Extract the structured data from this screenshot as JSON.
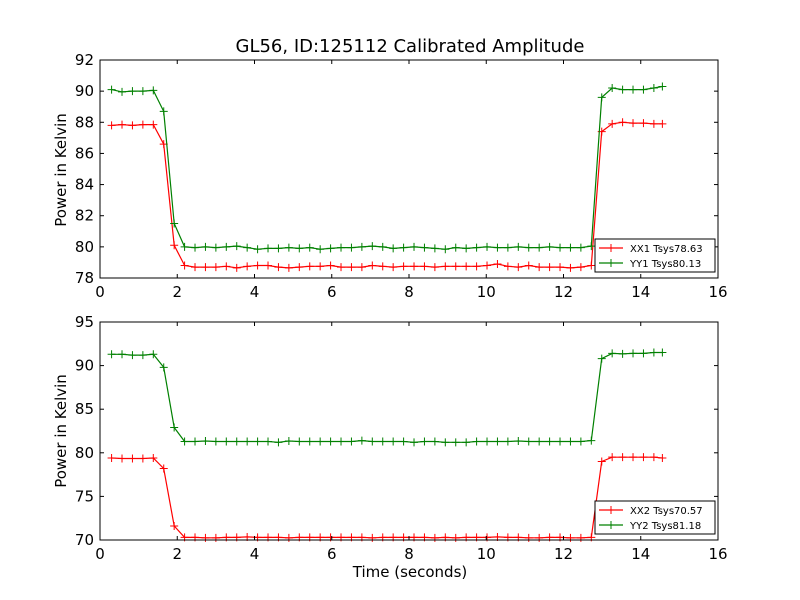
{
  "chart_data": [
    {
      "type": "line",
      "title": "GL56, ID:125112 Calibrated Amplitude",
      "xlabel": "",
      "ylabel": "Power in Kelvin",
      "xlim": [
        0,
        16
      ],
      "ylim": [
        78,
        92
      ],
      "xticks": [
        0,
        2,
        4,
        6,
        8,
        10,
        12,
        14,
        16
      ],
      "yticks": [
        78,
        80,
        82,
        84,
        86,
        88,
        90,
        92
      ],
      "grid": false,
      "legend_position": "lower-right",
      "x": [
        0.3,
        0.57,
        0.84,
        1.11,
        1.38,
        1.65,
        1.92,
        2.19,
        2.46,
        2.73,
        3.0,
        3.27,
        3.54,
        3.81,
        4.08,
        4.35,
        4.62,
        4.89,
        5.16,
        5.43,
        5.7,
        5.97,
        6.24,
        6.51,
        6.78,
        7.05,
        7.32,
        7.59,
        7.86,
        8.13,
        8.4,
        8.67,
        8.94,
        9.21,
        9.48,
        9.75,
        10.02,
        10.29,
        10.56,
        10.83,
        11.1,
        11.37,
        11.64,
        11.91,
        12.18,
        12.45,
        12.72,
        12.99,
        13.26,
        13.53,
        13.8,
        14.07,
        14.34,
        14.56
      ],
      "series": [
        {
          "name": "XX1 Tsys78.63",
          "color": "#ff0000",
          "values": [
            87.8,
            87.85,
            87.8,
            87.85,
            87.85,
            86.6,
            80.1,
            78.8,
            78.7,
            78.7,
            78.7,
            78.75,
            78.65,
            78.75,
            78.8,
            78.8,
            78.7,
            78.65,
            78.7,
            78.75,
            78.75,
            78.8,
            78.7,
            78.7,
            78.7,
            78.8,
            78.75,
            78.7,
            78.75,
            78.75,
            78.75,
            78.7,
            78.75,
            78.75,
            78.75,
            78.75,
            78.8,
            78.9,
            78.75,
            78.7,
            78.8,
            78.7,
            78.7,
            78.7,
            78.65,
            78.7,
            78.8,
            87.4,
            87.9,
            88.0,
            87.95,
            87.95,
            87.9,
            87.9
          ]
        },
        {
          "name": "YY1 Tsys80.13",
          "color": "#008000",
          "values": [
            90.1,
            89.95,
            90.0,
            90.0,
            90.05,
            88.7,
            81.5,
            80.0,
            79.95,
            80.0,
            79.95,
            80.0,
            80.05,
            79.95,
            79.85,
            79.9,
            79.9,
            79.95,
            79.9,
            79.95,
            79.85,
            79.9,
            79.95,
            79.95,
            80.0,
            80.05,
            80.0,
            79.9,
            79.95,
            80.0,
            79.95,
            79.9,
            79.85,
            79.95,
            79.9,
            79.95,
            80.0,
            79.95,
            79.95,
            80.0,
            79.95,
            79.95,
            80.0,
            79.95,
            79.95,
            79.95,
            80.05,
            89.6,
            90.2,
            90.1,
            90.1,
            90.1,
            90.2,
            90.3
          ]
        }
      ]
    },
    {
      "type": "line",
      "title": "",
      "xlabel": "Time (seconds)",
      "ylabel": "Power in Kelvin",
      "xlim": [
        0,
        16
      ],
      "ylim": [
        70,
        95
      ],
      "xticks": [
        0,
        2,
        4,
        6,
        8,
        10,
        12,
        14,
        16
      ],
      "yticks": [
        70,
        75,
        80,
        85,
        90,
        95
      ],
      "grid": false,
      "legend_position": "lower-right",
      "x": [
        0.3,
        0.57,
        0.84,
        1.11,
        1.38,
        1.65,
        1.92,
        2.19,
        2.46,
        2.73,
        3.0,
        3.27,
        3.54,
        3.81,
        4.08,
        4.35,
        4.62,
        4.89,
        5.16,
        5.43,
        5.7,
        5.97,
        6.24,
        6.51,
        6.78,
        7.05,
        7.32,
        7.59,
        7.86,
        8.13,
        8.4,
        8.67,
        8.94,
        9.21,
        9.48,
        9.75,
        10.02,
        10.29,
        10.56,
        10.83,
        11.1,
        11.37,
        11.64,
        11.91,
        12.18,
        12.45,
        12.72,
        12.99,
        13.26,
        13.53,
        13.8,
        14.07,
        14.34,
        14.56
      ],
      "series": [
        {
          "name": "XX2 Tsys70.57",
          "color": "#ff0000",
          "values": [
            79.4,
            79.35,
            79.35,
            79.35,
            79.4,
            78.2,
            71.6,
            70.3,
            70.3,
            70.25,
            70.25,
            70.3,
            70.3,
            70.35,
            70.3,
            70.3,
            70.3,
            70.25,
            70.3,
            70.3,
            70.3,
            70.3,
            70.3,
            70.3,
            70.3,
            70.25,
            70.3,
            70.3,
            70.3,
            70.3,
            70.3,
            70.25,
            70.3,
            70.25,
            70.3,
            70.3,
            70.3,
            70.35,
            70.3,
            70.3,
            70.25,
            70.25,
            70.3,
            70.3,
            70.25,
            70.25,
            70.3,
            79.0,
            79.5,
            79.5,
            79.5,
            79.5,
            79.5,
            79.4
          ]
        },
        {
          "name": "YY2 Tsys81.18",
          "color": "#008000",
          "values": [
            91.3,
            91.3,
            91.2,
            91.2,
            91.3,
            89.8,
            82.9,
            81.3,
            81.3,
            81.35,
            81.3,
            81.3,
            81.3,
            81.3,
            81.3,
            81.3,
            81.2,
            81.35,
            81.3,
            81.3,
            81.3,
            81.3,
            81.3,
            81.3,
            81.4,
            81.3,
            81.3,
            81.3,
            81.3,
            81.2,
            81.3,
            81.3,
            81.2,
            81.2,
            81.2,
            81.3,
            81.3,
            81.3,
            81.3,
            81.35,
            81.3,
            81.3,
            81.3,
            81.3,
            81.3,
            81.3,
            81.4,
            90.8,
            91.4,
            91.35,
            91.4,
            91.4,
            91.5,
            91.5
          ]
        }
      ]
    }
  ]
}
